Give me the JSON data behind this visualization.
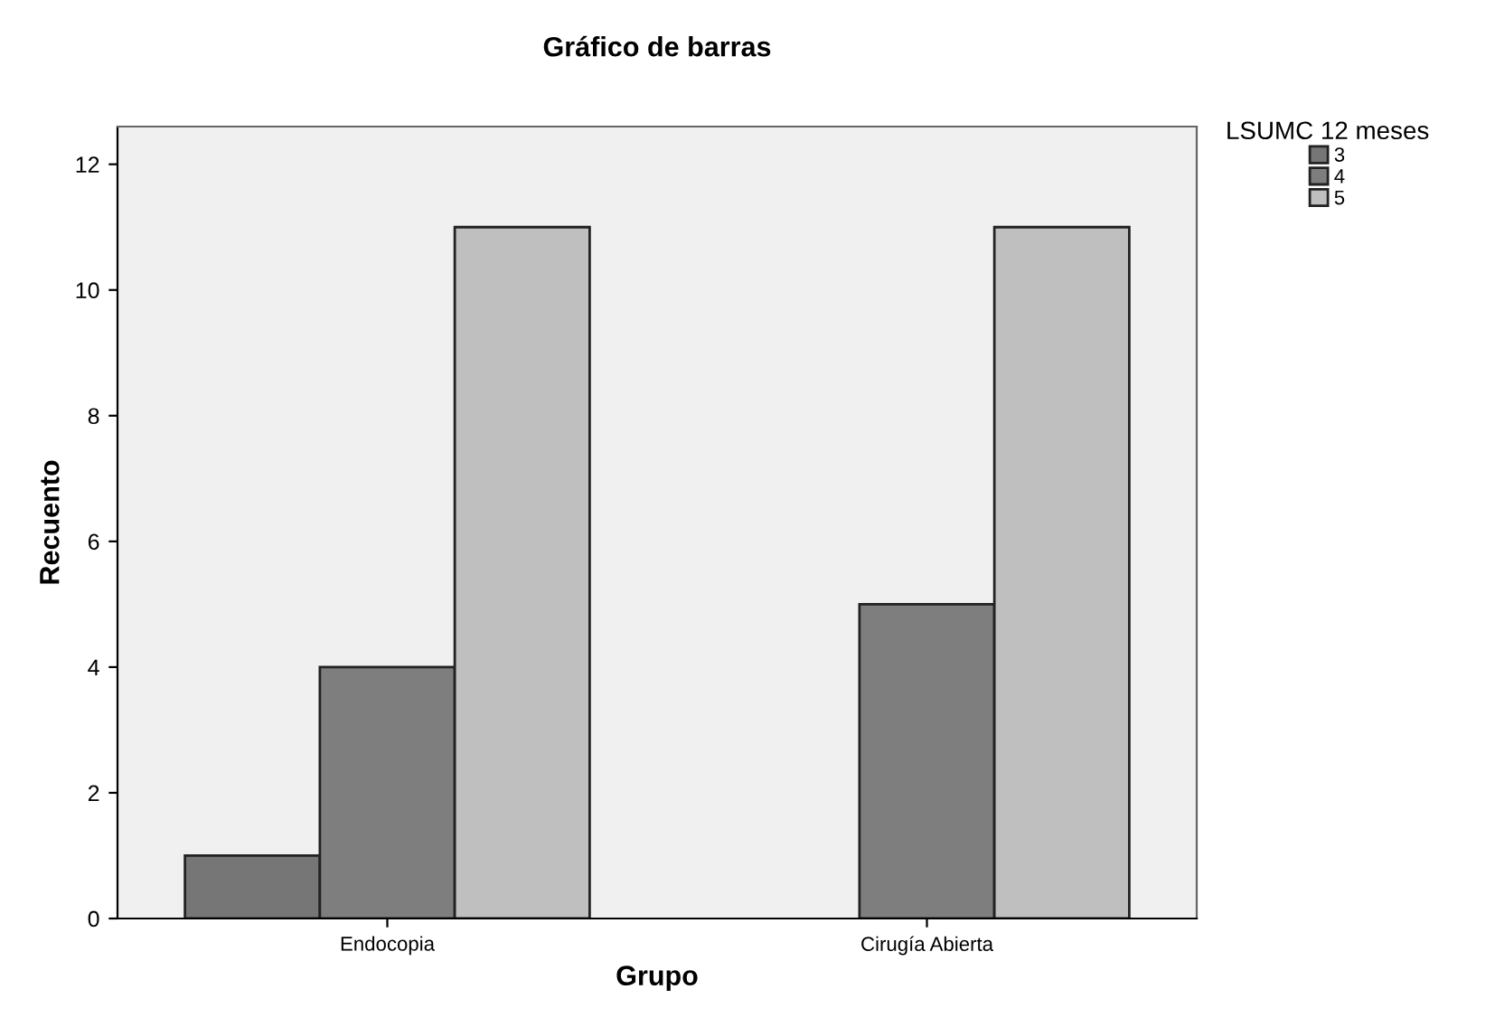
{
  "chart_data": {
    "type": "bar",
    "title": "Gráfico de barras",
    "xlabel": "Grupo",
    "ylabel": "Recuento",
    "legend_title": "LSUMC 12 meses",
    "categories": [
      "Endocopia",
      "Cirugía Abierta"
    ],
    "series": [
      {
        "name": "3",
        "color": "#767676",
        "values": [
          1,
          null
        ]
      },
      {
        "name": "4",
        "color": "#7e7e7e",
        "values": [
          4,
          5
        ]
      },
      {
        "name": "5",
        "color": "#bfbfbf",
        "values": [
          11,
          11
        ]
      }
    ],
    "ylim": [
      0,
      12.6
    ],
    "yticks": [
      0,
      2,
      4,
      6,
      8,
      10,
      12
    ],
    "grid": false,
    "legend": "top right"
  }
}
